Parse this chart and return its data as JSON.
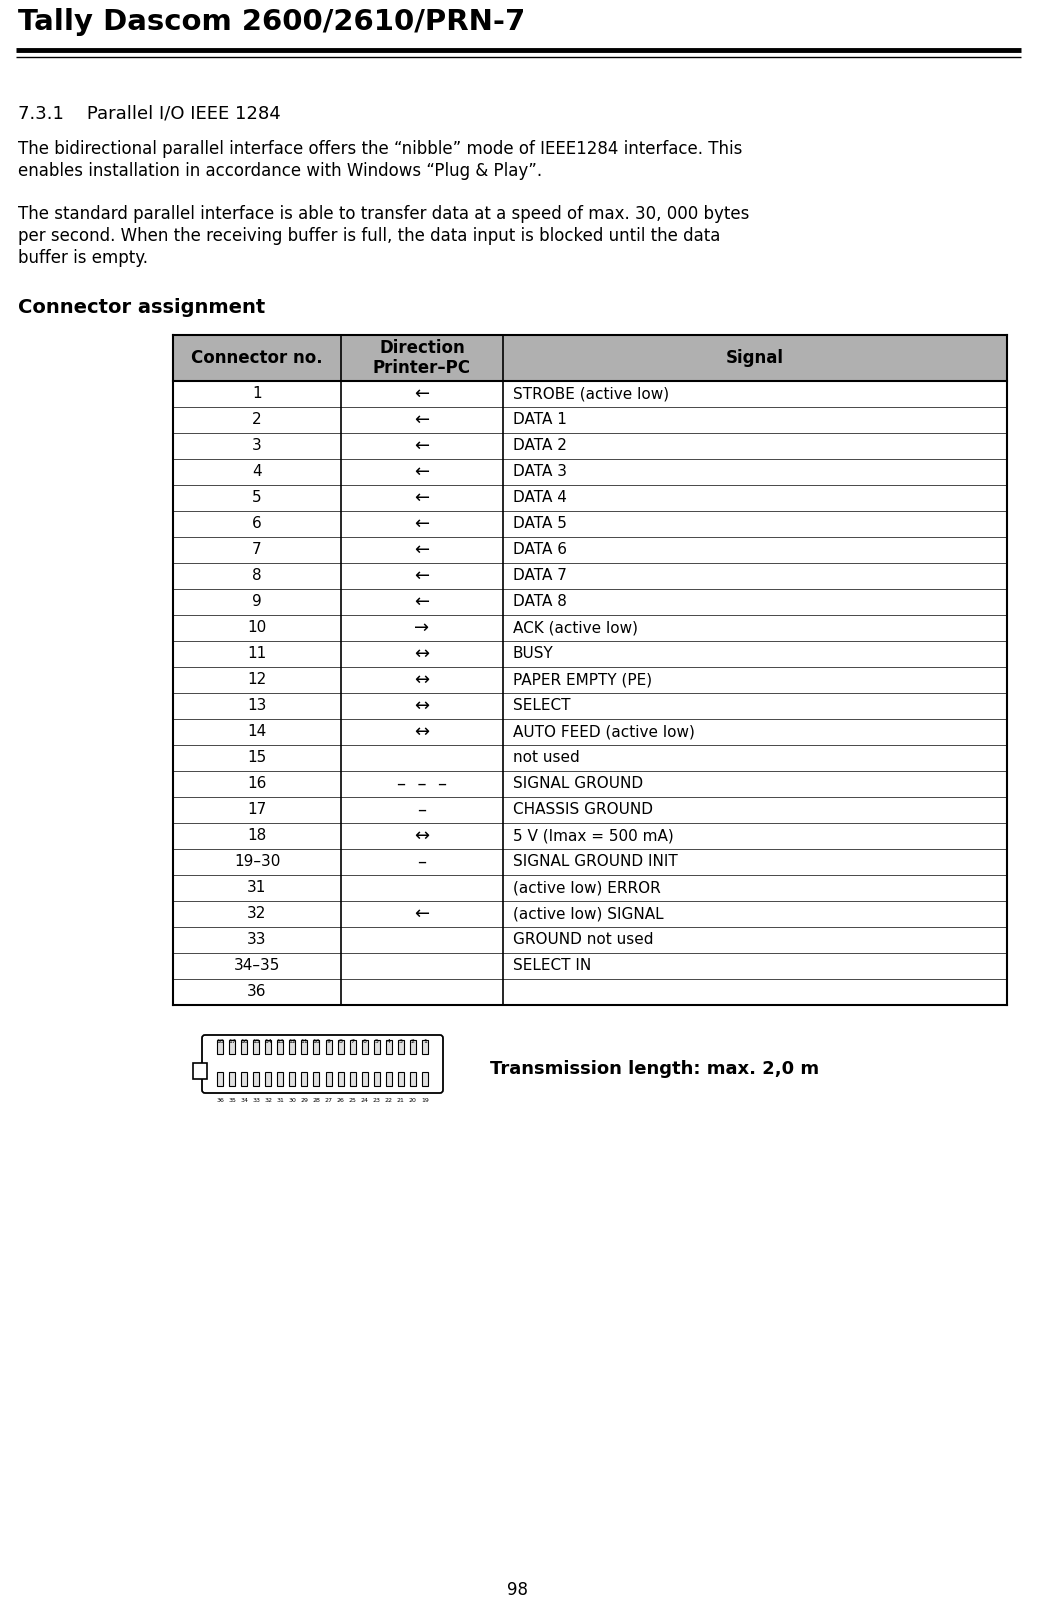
{
  "title": "Tally Dascom 2600/2610/PRN-7",
  "section": "7.3.1    Parallel I/O IEEE 1284",
  "para1_line1": "The bidirectional parallel interface offers the “nibble” mode of IEEE1284 interface. This",
  "para1_line2": "enables installation in accordance with Windows “Plug & Play”.",
  "para2_line1": "The standard parallel interface is able to transfer data at a speed of max. 30, 000 bytes",
  "para2_line2": "per second. When the receiving buffer is full, the data input is blocked until the data",
  "para2_line3": "buffer is empty.",
  "table_title": "Connector assignment",
  "col_headers": [
    "Connector no.",
    "Direction\nPrinter–PC",
    "Signal"
  ],
  "rows": [
    [
      "1",
      "←",
      "STROBE (active low)"
    ],
    [
      "2",
      "←",
      "DATA 1"
    ],
    [
      "3",
      "←",
      "DATA 2"
    ],
    [
      "4",
      "←",
      "DATA 3"
    ],
    [
      "5",
      "←",
      "DATA 4"
    ],
    [
      "6",
      "←",
      "DATA 5"
    ],
    [
      "7",
      "←",
      "DATA 6"
    ],
    [
      "8",
      "←",
      "DATA 7"
    ],
    [
      "9",
      "←",
      "DATA 8"
    ],
    [
      "10",
      "→",
      "ACK (active low)"
    ],
    [
      "11",
      "↔",
      "BUSY"
    ],
    [
      "12",
      "↔",
      "PAPER EMPTY (PE)"
    ],
    [
      "13",
      "↔",
      "SELECT"
    ],
    [
      "14",
      "↔",
      "AUTO FEED (active low)"
    ],
    [
      "15",
      "",
      "not used"
    ],
    [
      "16",
      "–  –  –",
      "SIGNAL GROUND"
    ],
    [
      "17",
      "–",
      "CHASSIS GROUND"
    ],
    [
      "18",
      "↔",
      "5 V (Imax = 500 mA)"
    ],
    [
      "19–30",
      "–",
      "SIGNAL GROUND INIT"
    ],
    [
      "31",
      "",
      "(active low) ERROR"
    ],
    [
      "32",
      "←",
      "(active low) SIGNAL"
    ],
    [
      "33",
      "",
      "GROUND not used"
    ],
    [
      "34–35",
      "",
      "SELECT IN"
    ],
    [
      "36",
      "",
      ""
    ]
  ],
  "transmission": "Transmission length: max. 2,0 m",
  "page_number": "98",
  "header_bg": "#b0b0b0",
  "bg_color": "#ffffff"
}
